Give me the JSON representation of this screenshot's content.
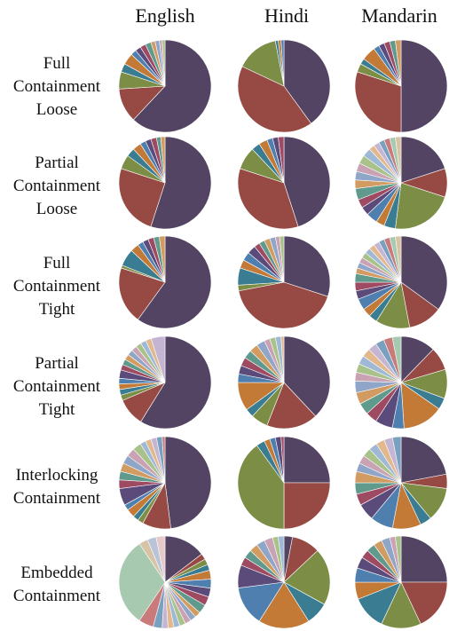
{
  "chart_data": {
    "type": "pie",
    "layout": "grid",
    "columns": [
      "English",
      "Hindi",
      "Mandarin"
    ],
    "rows": [
      {
        "label_lines": [
          "Full",
          "Containment",
          "Loose"
        ]
      },
      {
        "label_lines": [
          "Partial",
          "Containment",
          "Loose"
        ]
      },
      {
        "label_lines": [
          "Full",
          "Containment",
          "Tight"
        ]
      },
      {
        "label_lines": [
          "Partial",
          "Containment",
          "Tight"
        ]
      },
      {
        "label_lines": [
          "Interlocking",
          "Containment"
        ]
      },
      {
        "label_lines": [
          "Embedded",
          "Containment"
        ]
      }
    ],
    "palette": [
      "#524462",
      "#974a44",
      "#7c8e46",
      "#3a7c91",
      "#c47a37",
      "#4f7fae",
      "#5b4b7a",
      "#9e4a62",
      "#5f9a8c",
      "#d29b62",
      "#8fa6c9",
      "#c9a3b3",
      "#a8c28a",
      "#9fb8d6",
      "#e2b88d",
      "#c4b6d2",
      "#7aa0c0",
      "#c97a7a",
      "#a6c9b0",
      "#d7c3a5",
      "#b9c4d9",
      "#e6c9c9",
      "#c5d3a8",
      "#dadde6",
      "#e8d9c1",
      "#cfd9e3",
      "#e9dfe6",
      "#d8e0c6"
    ],
    "pies": [
      [
        {
          "column": "English",
          "slices": [
            62,
            12,
            6,
            3,
            4,
            2,
            2,
            2,
            2,
            1.5,
            1.5,
            1,
            1
          ]
        },
        {
          "column": "Hindi",
          "slices": [
            40,
            42,
            15,
            1,
            1,
            1
          ]
        },
        {
          "column": "Mandarin",
          "slices": [
            50,
            30,
            3,
            2,
            5,
            2,
            2,
            2,
            2,
            2
          ]
        }
      ],
      [
        {
          "column": "English",
          "slices": [
            55,
            25,
            5,
            3,
            3,
            2,
            2,
            2,
            1.5,
            1.5
          ]
        },
        {
          "column": "Hindi",
          "slices": [
            45,
            35,
            8,
            3,
            3,
            2,
            2,
            2
          ]
        },
        {
          "column": "Mandarin",
          "slices": [
            20,
            10,
            22,
            4,
            3,
            4,
            3,
            3,
            4,
            3,
            3,
            3,
            3,
            3,
            2,
            2,
            2,
            2,
            2,
            2
          ]
        }
      ],
      [
        {
          "column": "English",
          "slices": [
            60,
            20,
            1,
            6,
            3,
            2,
            2,
            2,
            2,
            2
          ]
        },
        {
          "column": "Hindi",
          "slices": [
            30,
            42,
            2,
            6,
            3,
            3,
            3,
            2,
            2,
            2,
            2,
            1.5,
            1.5
          ]
        },
        {
          "column": "Mandarin",
          "slices": [
            35,
            12,
            12,
            3,
            3,
            4,
            3,
            3,
            3,
            2,
            2,
            2,
            2,
            2,
            2,
            2,
            2,
            2,
            2,
            2
          ]
        }
      ],
      [
        {
          "column": "English",
          "slices": [
            60,
            10,
            2,
            2,
            2,
            2,
            3,
            2,
            2,
            2,
            2,
            2,
            2,
            2,
            2,
            5
          ]
        },
        {
          "column": "Hindi",
          "slices": [
            38,
            18,
            6,
            3,
            10,
            3,
            3,
            3,
            3,
            3,
            3,
            2,
            2,
            2,
            1
          ]
        },
        {
          "column": "Mandarin",
          "slices": [
            12,
            8,
            10,
            4,
            14,
            4,
            6,
            4,
            4,
            4,
            4,
            3,
            3,
            3,
            3,
            3,
            3,
            3,
            3
          ]
        }
      ],
      [
        {
          "column": "English",
          "slices": [
            48,
            10,
            2,
            2,
            3,
            2,
            6,
            3,
            3,
            3,
            3,
            3,
            3,
            2,
            2,
            2,
            2,
            1
          ]
        },
        {
          "column": "Hindi",
          "slices": [
            25,
            25,
            40,
            3,
            2,
            2,
            2,
            1
          ]
        },
        {
          "column": "Mandarin",
          "slices": [
            22,
            5,
            12,
            4,
            10,
            8,
            6,
            4,
            4,
            4,
            3,
            3,
            3,
            3,
            3,
            3,
            3
          ]
        }
      ],
      [
        {
          "column": "English",
          "slices": [
            14,
            2,
            2,
            2,
            3,
            3,
            3,
            3,
            3,
            2,
            2,
            2,
            2,
            2,
            2,
            2,
            3,
            5,
            30,
            3,
            3,
            3
          ]
        },
        {
          "column": "Hindi",
          "slices": [
            3,
            10,
            20,
            8,
            18,
            14,
            8,
            3,
            3,
            3,
            3,
            3,
            2,
            2
          ]
        },
        {
          "column": "Mandarin",
          "slices": [
            25,
            18,
            14,
            12,
            6,
            5,
            4,
            3,
            3,
            3,
            3,
            2,
            2
          ]
        }
      ]
    ]
  }
}
